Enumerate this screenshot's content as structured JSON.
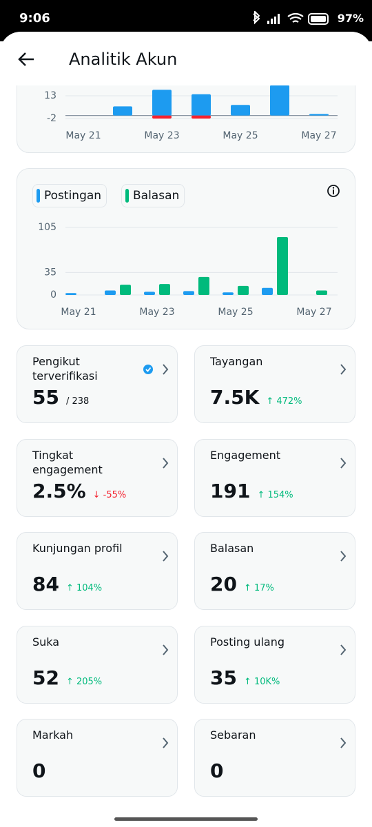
{
  "status_bar": {
    "time": "9:06",
    "battery": "97%"
  },
  "header": {
    "title": "Analitik Akun"
  },
  "chart_data": [
    {
      "type": "bar",
      "barmode": "overlay",
      "categories": [
        "May 21",
        null,
        "May 23",
        null,
        "May 25",
        null,
        "May 27"
      ],
      "series": [
        {
          "color": "#1d9bf0",
          "values": [
            0,
            6,
            17,
            14,
            7,
            20,
            1
          ]
        },
        {
          "color": "#f4212e",
          "values": [
            null,
            null,
            -2,
            -2,
            null,
            null,
            null
          ]
        }
      ],
      "ylim": [
        -2,
        28
      ],
      "yticks": [
        -2,
        13
      ],
      "grid": true
    },
    {
      "type": "bar",
      "barmode": "group",
      "categories": [
        "May 21",
        null,
        "May 23",
        null,
        "May 25",
        null,
        "May 27"
      ],
      "series": [
        {
          "name": "Postingan",
          "color": "#1d9bf0",
          "values": [
            3,
            7,
            5,
            6,
            4,
            11,
            0
          ]
        },
        {
          "name": "Balasan",
          "color": "#00ba7c",
          "values": [
            0,
            16,
            17,
            28,
            14,
            90,
            7
          ]
        }
      ],
      "ylim": [
        0,
        105
      ],
      "yticks": [
        0,
        35,
        105
      ],
      "grid": true
    }
  ],
  "stats": [
    {
      "label": "Pengikut terverifikasi",
      "value": "55",
      "total": "/ 238"
    },
    {
      "label": "Tayangan",
      "value": "7.5K",
      "change": "↑ 472%",
      "change_color": "#00ba7c"
    },
    {
      "label": "Tingkat engagement",
      "value": "2.5%",
      "change": "↓ -55%",
      "change_color": "#f4212e"
    },
    {
      "label": "Engagement",
      "value": "191",
      "change": "↑ 154%",
      "change_color": "#00ba7c"
    },
    {
      "label": "Kunjungan profil",
      "value": "84",
      "change": "↑ 104%",
      "change_color": "#00ba7c"
    },
    {
      "label": "Balasan",
      "value": "20",
      "change": "↑ 17%",
      "change_color": "#00ba7c"
    },
    {
      "label": "Suka",
      "value": "52",
      "change": "↑ 205%",
      "change_color": "#00ba7c"
    },
    {
      "label": "Posting ulang",
      "value": "35",
      "change": "↑ 10K%",
      "change_color": "#00ba7c"
    },
    {
      "label": "Markah",
      "value": "0"
    },
    {
      "label": "Sebaran",
      "value": "0"
    }
  ]
}
